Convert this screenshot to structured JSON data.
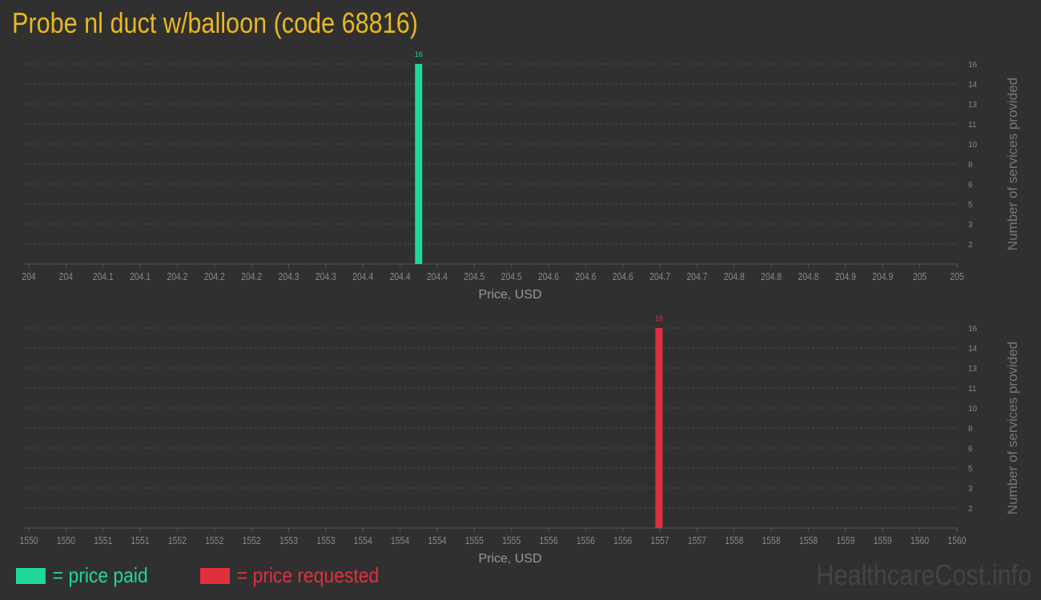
{
  "title": "Probe nl duct w/balloon (code 68816)",
  "watermark": "HealthcareCost.info",
  "legend": {
    "paid": "= price paid",
    "requested": "= price requested"
  },
  "colors": {
    "paid": "#20d898",
    "requested": "#e03040",
    "title": "#e8b820"
  },
  "chart_data": [
    {
      "type": "bar",
      "xlabel": "Price, USD",
      "ylabel": "Number of services provided",
      "xlim": [
        204,
        205
      ],
      "ylim": [
        0,
        16
      ],
      "grid": true,
      "xtick_labels": [
        "204",
        "204",
        "204.1",
        "204.1",
        "204.2",
        "204.2",
        "204.2",
        "204.3",
        "204.3",
        "204.4",
        "204.4",
        "204.4",
        "204.5",
        "204.5",
        "204.6",
        "204.6",
        "204.6",
        "204.7",
        "204.7",
        "204.8",
        "204.8",
        "204.8",
        "204.9",
        "204.9",
        "205",
        "205"
      ],
      "ytick_labels": [
        "2",
        "3",
        "5",
        "6",
        "8",
        "10",
        "11",
        "13",
        "14",
        "16"
      ],
      "series": [
        {
          "name": "price paid",
          "color": "#20d898",
          "points": [
            {
              "x": 204.42,
              "y": 16,
              "label": "16"
            }
          ]
        }
      ]
    },
    {
      "type": "bar",
      "xlabel": "Price, USD",
      "ylabel": "Number of services provided",
      "xlim": [
        1550,
        1560
      ],
      "ylim": [
        0,
        16
      ],
      "grid": true,
      "xtick_labels": [
        "1550",
        "1550",
        "1551",
        "1551",
        "1552",
        "1552",
        "1552",
        "1553",
        "1553",
        "1554",
        "1554",
        "1554",
        "1555",
        "1555",
        "1556",
        "1556",
        "1556",
        "1557",
        "1557",
        "1558",
        "1558",
        "1558",
        "1559",
        "1559",
        "1560",
        "1560"
      ],
      "ytick_labels": [
        "2",
        "3",
        "5",
        "6",
        "8",
        "10",
        "11",
        "13",
        "14",
        "16"
      ],
      "series": [
        {
          "name": "price requested",
          "color": "#e03040",
          "points": [
            {
              "x": 1556.79,
              "y": 16,
              "label": "16"
            }
          ]
        }
      ]
    }
  ]
}
